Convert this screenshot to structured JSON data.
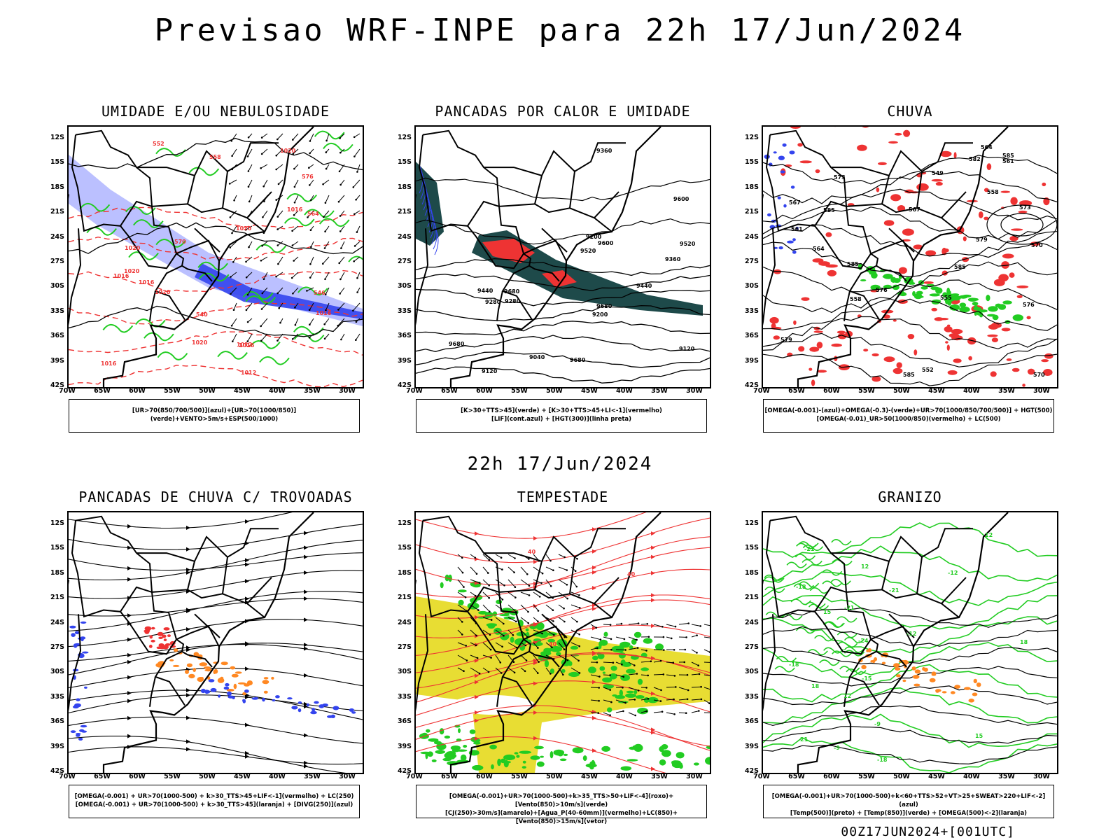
{
  "title": "Previsao WRF-INPE  para 22h 17/Jun/2024",
  "subtitle": "22h 17/Jun/2024",
  "footer": "00Z17JUN2024+[001UTC]",
  "lat_labels": [
    "12S",
    "15S",
    "18S",
    "21S",
    "24S",
    "27S",
    "30S",
    "33S",
    "36S",
    "39S",
    "42S"
  ],
  "lon_labels": [
    "70W",
    "65W",
    "60W",
    "55W",
    "50W",
    "45W",
    "40W",
    "35W",
    "30W"
  ],
  "panels": [
    {
      "id": "umidade",
      "title": "UMIDADE E/OU NEBULOSIDADE",
      "legend": [
        "[UR>70(850/700/500)](azul)+[UR>70(1000/850)](verde)+VENTO>5m/s+ESP(500/1000)"
      ],
      "contour_labels": [
        "1016",
        "1020",
        "1012",
        "1016",
        "1020",
        "1016",
        "1016",
        "1020",
        "1020",
        "1016",
        "1016",
        "1020",
        "1012",
        "1020",
        "570",
        "564",
        "558",
        "552",
        "546",
        "540",
        "576"
      ]
    },
    {
      "id": "pancadas",
      "title": "PANCADAS POR CALOR E UMIDADE",
      "legend": [
        "[K>30+TTS>45](verde) + [K>30+TTS>45+LI<-1](vermelho)",
        "[LIF](cont.azul) + [HGT(300)](linha preta)"
      ],
      "contour_labels": [
        "9680",
        "9680",
        "9680",
        "9600",
        "9520",
        "9440",
        "9360",
        "9280",
        "9200",
        "9120",
        "9040",
        "9680",
        "9600",
        "9520",
        "9440",
        "9360",
        "9280",
        "9200",
        "9120"
      ]
    },
    {
      "id": "chuva",
      "title": "CHUVA",
      "legend": [
        "[OMEGA(-0.001)-(azul)+OMEGA(-0.3)-(verde)+UR>70(1000/850/700/500)] + HGT(500)",
        "[OMEGA(-0.01)_UR>50(1000/850)(vermelho) + LC(500)"
      ],
      "contour_labels": [
        "585",
        "585",
        "585",
        "585",
        "579",
        "576",
        "573",
        "570",
        "567",
        "564",
        "561",
        "558",
        "585",
        "582",
        "579",
        "576",
        "573",
        "570",
        "567",
        "564",
        "561",
        "558",
        "555",
        "552",
        "549"
      ]
    },
    {
      "id": "trovoadas",
      "title": "PANCADAS DE CHUVA C/ TROVOADAS",
      "legend": [
        "[OMEGA(-0.001) + UR>70(1000-500) + k>30_TTS>45+LIF<-1](vermelho) + LC(250)",
        "[OMEGA(-0.001) + UR>70(1000-500) + k>30_TTS>45](laranja) + [DIVG(250)](azul)"
      ],
      "contour_labels": []
    },
    {
      "id": "tempestade",
      "title": "TEMPESTADE",
      "legend": [
        "[OMEGA(-0.001)+UR>70(1000-500)+k>35_TTS>50+LIF<-4](roxo)+[Vento(850)>10m/s](verde)",
        "[CJ(250)>30m/s](amarelo)+[Agua_P(40-60mm)](vermelho)+LC(850)+[Vento(850)>15m/s](vetor)"
      ],
      "contour_labels": [
        "40",
        "40",
        "40"
      ]
    },
    {
      "id": "granizo",
      "title": "GRANIZO",
      "legend": [
        "[OMEGA(-0.001)+UR>70(1000-500)+k<60+TTS>52+VT>25+SWEAT>220+LIF<-2](azul)",
        "[Temp(500)](preto) + [Temp(850)](verde) + [OMEGA(500)<-2](laranja)"
      ],
      "contour_labels": [
        "12",
        "12",
        "12",
        "15",
        "15",
        "18",
        "18",
        "21",
        "-9",
        "-12",
        "-15",
        "-18",
        "-21",
        "-9",
        "-12",
        "-18",
        "-21",
        "-18",
        "-21",
        "-24"
      ]
    }
  ],
  "colors": {
    "blue": "#3344ee",
    "green": "#22cc22",
    "red": "#ee3333",
    "orange": "#ff8822",
    "yellow": "#e8dd33",
    "darkgreen": "#1e4a4a",
    "lightblue": "#aab0ff"
  }
}
